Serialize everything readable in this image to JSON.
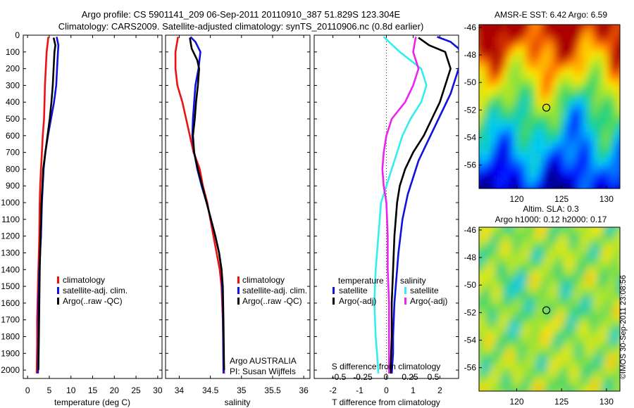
{
  "header": {
    "title_line1": "Argo profile: CS 5901141_209 06-Sep-2011 20110910_387 51.829S 123.304E",
    "title_line2": "Climatology: CARS2009. Satellite-adjusted climatology: synTS_20110906.nc (0.8d earlier)"
  },
  "colors": {
    "climatology": "#ee1111",
    "satellite": "#1111dd",
    "argo": "#000000",
    "satellite_salinity": "#33eeee",
    "argo_salinity": "#ee22ee"
  },
  "chart_data": [
    {
      "id": "temperature",
      "type": "line",
      "xlabel": "temperature (deg C)",
      "ylabel": "",
      "xlim": [
        -1,
        31
      ],
      "ylim": [
        2050,
        0
      ],
      "xticks": [
        "0",
        "5",
        "10",
        "15",
        "20",
        "25",
        "30"
      ],
      "xtick_values": [
        0,
        5,
        10,
        15,
        20,
        25,
        30
      ],
      "yticks": [
        "0",
        "100",
        "200",
        "300",
        "400",
        "500",
        "600",
        "700",
        "800",
        "900",
        "1000",
        "1100",
        "1200",
        "1300",
        "1400",
        "1500",
        "1600",
        "1700",
        "1800",
        "1900",
        "2000"
      ],
      "ytick_values": [
        0,
        100,
        200,
        300,
        400,
        500,
        600,
        700,
        800,
        900,
        1000,
        1100,
        1200,
        1300,
        1400,
        1500,
        1600,
        1700,
        1800,
        1900,
        2000
      ],
      "legend": {
        "placement": "lower-center",
        "entries": [
          {
            "label": "climatology",
            "color": "#ee1111"
          },
          {
            "label": "satellite-adj. clim.",
            "color": "#1111dd"
          },
          {
            "label": "Argo(..raw -QC)",
            "color": "#000000"
          }
        ]
      },
      "series": [
        {
          "color": "#ee1111",
          "x": [
            4.8,
            4.4,
            4.2,
            4.0,
            3.9,
            3.8,
            3.5,
            3.3,
            3.1,
            2.9,
            2.8,
            2.7,
            2.6,
            2.5,
            2.4,
            2.3,
            2.2,
            2.2,
            2.1
          ],
          "y": [
            10,
            100,
            200,
            300,
            400,
            500,
            600,
            700,
            800,
            900,
            1000,
            1200,
            1300,
            1400,
            1500,
            1600,
            1700,
            1850,
            2020
          ]
        },
        {
          "color": "#1111dd",
          "x": [
            6.7,
            7.1,
            7.0,
            6.8,
            6.6,
            6.1,
            5.4,
            4.7,
            4.1,
            3.7,
            3.5,
            3.3,
            3.1,
            2.9,
            2.7,
            2.6,
            2.5,
            2.5,
            2.4
          ],
          "y": [
            10,
            60,
            100,
            200,
            300,
            400,
            500,
            600,
            700,
            800,
            900,
            1000,
            1200,
            1300,
            1400,
            1500,
            1600,
            1800,
            2020
          ]
        },
        {
          "color": "#000000",
          "x": [
            6.0,
            6.4,
            6.2,
            6.0,
            5.8,
            5.5,
            5.1,
            4.6,
            4.1,
            3.6,
            3.4,
            3.2,
            3.0,
            2.8,
            2.7,
            2.6,
            2.5
          ],
          "y": [
            15,
            60,
            100,
            200,
            300,
            400,
            500,
            600,
            700,
            800,
            900,
            1000,
            1200,
            1400,
            1600,
            1800,
            2000
          ]
        }
      ]
    },
    {
      "id": "salinity",
      "type": "line",
      "xlabel": "salinity",
      "ylabel": "",
      "xlim": [
        33.78,
        36.1
      ],
      "ylim": [
        2050,
        0
      ],
      "xticks": [
        "34",
        "34.5",
        "35",
        "35.5",
        "36"
      ],
      "xtick_values": [
        34,
        34.5,
        35,
        35.5,
        36
      ],
      "yticks": [],
      "ytick_values": [],
      "annotations": [
        "Argo AUSTRALIA",
        "PI: Susan Wijffels"
      ],
      "legend": {
        "placement": "lower-right",
        "entries": [
          {
            "label": "climatology",
            "color": "#ee1111"
          },
          {
            "label": "satellite-adj. clim.",
            "color": "#1111dd"
          },
          {
            "label": "Argo(..raw -QC)",
            "color": "#000000"
          }
        ]
      },
      "series": [
        {
          "color": "#ee1111",
          "x": [
            33.98,
            33.94,
            33.94,
            33.97,
            34.05,
            34.11,
            34.17,
            34.23,
            34.33,
            34.38,
            34.45,
            34.5,
            34.55,
            34.6,
            34.65,
            34.68,
            34.7,
            34.72
          ],
          "y": [
            10,
            100,
            200,
            300,
            400,
            500,
            600,
            700,
            800,
            900,
            1000,
            1100,
            1200,
            1300,
            1400,
            1500,
            1700,
            2020
          ]
        },
        {
          "color": "#1111dd",
          "x": [
            34.18,
            34.26,
            34.34,
            34.31,
            34.26,
            34.24,
            34.22,
            34.21,
            34.24,
            34.29,
            34.36,
            34.44,
            34.51,
            34.58,
            34.64,
            34.68,
            34.7,
            34.71
          ],
          "y": [
            10,
            40,
            100,
            200,
            300,
            400,
            500,
            600,
            700,
            800,
            900,
            1000,
            1100,
            1200,
            1300,
            1400,
            1600,
            2020
          ]
        },
        {
          "color": "#000000",
          "x": [
            34.17,
            34.2,
            34.29,
            34.32,
            34.3,
            34.27,
            34.25,
            34.22,
            34.24,
            34.3,
            34.37,
            34.44,
            34.51,
            34.58,
            34.64,
            34.68,
            34.7,
            34.71,
            34.72
          ],
          "y": [
            15,
            80,
            150,
            200,
            300,
            400,
            500,
            600,
            700,
            800,
            900,
            1000,
            1100,
            1200,
            1300,
            1400,
            1500,
            1700,
            2000
          ]
        }
      ]
    },
    {
      "id": "difference",
      "type": "line",
      "xlabel": "T difference from climatology",
      "ylabel": "",
      "xlim": [
        -2.7,
        2.7
      ],
      "ylim": [
        2050,
        0
      ],
      "xticks": [
        "-2",
        "-1",
        "0",
        "1",
        "2"
      ],
      "xtick_values": [
        -2,
        -1,
        0,
        1,
        2
      ],
      "top_axis_label": "S difference from climatology",
      "top_axis_ticks": [
        "-0.5",
        "-0.25",
        "0",
        "0.25",
        "0.5"
      ],
      "legend": {
        "placement": "lower-center",
        "headers": [
          "temperature",
          "salinity"
        ],
        "entries": [
          {
            "label": "satellite",
            "color": "#1111dd",
            "column": "temperature"
          },
          {
            "label": "Argo(-adj)",
            "color": "#000000",
            "column": "temperature"
          },
          {
            "label": "satellite",
            "color": "#33eeee",
            "column": "salinity"
          },
          {
            "label": "Argo(-adj)",
            "color": "#ee22ee",
            "column": "salinity"
          }
        ]
      },
      "series": [
        {
          "color": "#1111dd",
          "x": [
            1.9,
            2.4,
            2.7,
            2.8,
            2.6,
            2.4,
            2.1,
            1.8,
            1.5,
            1.2,
            1.0,
            0.8,
            0.6,
            0.45,
            0.35,
            0.3,
            0.25,
            0.25,
            0.2
          ],
          "y": [
            10,
            40,
            80,
            150,
            250,
            350,
            450,
            550,
            650,
            750,
            850,
            950,
            1100,
            1300,
            1500,
            1600,
            1800,
            1900,
            2020
          ]
        },
        {
          "color": "#000000",
          "x": [
            1.2,
            1.6,
            2.2,
            2.4,
            2.2,
            2.0,
            1.7,
            1.4,
            1.0,
            0.7,
            0.5,
            0.4,
            0.3,
            0.25,
            0.2,
            0.2,
            0.15
          ],
          "y": [
            15,
            60,
            100,
            200,
            300,
            400,
            500,
            600,
            700,
            800,
            900,
            1000,
            1200,
            1400,
            1600,
            1800,
            2020
          ]
        },
        {
          "color": "#33eeee",
          "x": [
            -0.1,
            0.5,
            1.3,
            1.5,
            1.3,
            0.9,
            0.6,
            0.4,
            0.2,
            0.0,
            -0.2,
            -0.3,
            -0.4,
            -0.45,
            -0.4,
            -0.35,
            -0.3
          ],
          "y": [
            10,
            100,
            200,
            300,
            400,
            500,
            600,
            700,
            800,
            900,
            1000,
            1200,
            1400,
            1600,
            1800,
            1900,
            2020
          ]
        },
        {
          "color": "#ee22ee",
          "x": [
            1.1,
            1.0,
            1.2,
            1.0,
            0.7,
            0.2,
            0.0,
            -0.1,
            -0.15,
            -0.1,
            0.0,
            0.05,
            0.05,
            0.1,
            0.1
          ],
          "y": [
            10,
            100,
            200,
            300,
            400,
            500,
            600,
            700,
            800,
            900,
            1000,
            1200,
            1400,
            1600,
            2020
          ]
        }
      ]
    },
    {
      "id": "sst-map",
      "type": "heatmap",
      "title": "AMSR-E SST: 6.42  Argo: 6.59",
      "xticks": [
        "120",
        "125",
        "130"
      ],
      "xtick_values": [
        120,
        125,
        130
      ],
      "yticks": [
        "-46",
        "-48",
        "-50",
        "-52",
        "-54",
        "-56"
      ],
      "ytick_values": [
        -46,
        -48,
        -50,
        -52,
        -54,
        -56
      ],
      "xlim": [
        115.8,
        131.5
      ],
      "ylim": [
        -57.7,
        -45.8
      ],
      "marker": {
        "lon": 123.304,
        "lat": -51.829
      }
    },
    {
      "id": "sla-map",
      "type": "heatmap",
      "title_line1": "Altim. SLA: 0.3",
      "title_line2": "Argo h1000: 0.12  h2000: 0.17",
      "xticks": [
        "120",
        "125",
        "130"
      ],
      "xtick_values": [
        120,
        125,
        130
      ],
      "yticks": [
        "-46",
        "-48",
        "-50",
        "-52",
        "-54",
        "-56"
      ],
      "ytick_values": [
        -46,
        -48,
        -50,
        -52,
        -54,
        -56
      ],
      "xlim": [
        115.8,
        131.5
      ],
      "ylim": [
        -57.7,
        -45.8
      ],
      "marker": {
        "lon": 123.304,
        "lat": -51.829
      }
    }
  ],
  "watermark": "©IMOS 30-Sep-2011 23:08:56"
}
